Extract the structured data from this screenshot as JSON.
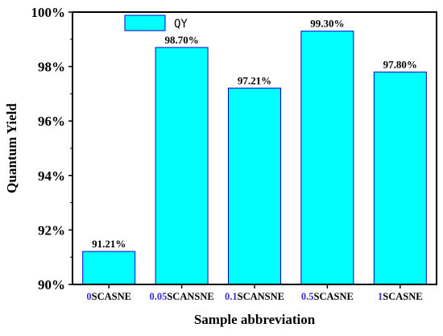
{
  "chart_data": {
    "type": "bar",
    "categories": [
      {
        "prefix": "0",
        "suffix": "SCASNE"
      },
      {
        "prefix": "0.05",
        "suffix": "SCANSNE"
      },
      {
        "prefix": "0.1",
        "suffix": "SCANSNE"
      },
      {
        "prefix": "0.5",
        "suffix": "SCASNE"
      },
      {
        "prefix": "1",
        "suffix": "SCASNE"
      }
    ],
    "series": [
      {
        "name": "QY",
        "values": [
          91.21,
          98.7,
          97.21,
          99.3,
          97.8
        ],
        "labels": [
          "91.21%",
          "98.70%",
          "97.21%",
          "99.30%",
          "97.80%"
        ]
      }
    ],
    "xlabel": "Sample abbreviation",
    "ylabel": "Quantum Yield",
    "ylim": [
      90,
      100
    ],
    "yticks": [
      "90%",
      "92%",
      "94%",
      "96%",
      "98%",
      "100%"
    ],
    "ytick_values": [
      90,
      92,
      94,
      96,
      98,
      100
    ],
    "grid": false,
    "legend_position": "top-left",
    "colors": {
      "bar_fill": "#00FFFF",
      "bar_stroke": "#0000CC",
      "category_prefix": "#3333CC",
      "category_suffix": "#000000",
      "axis": "#000000"
    }
  }
}
